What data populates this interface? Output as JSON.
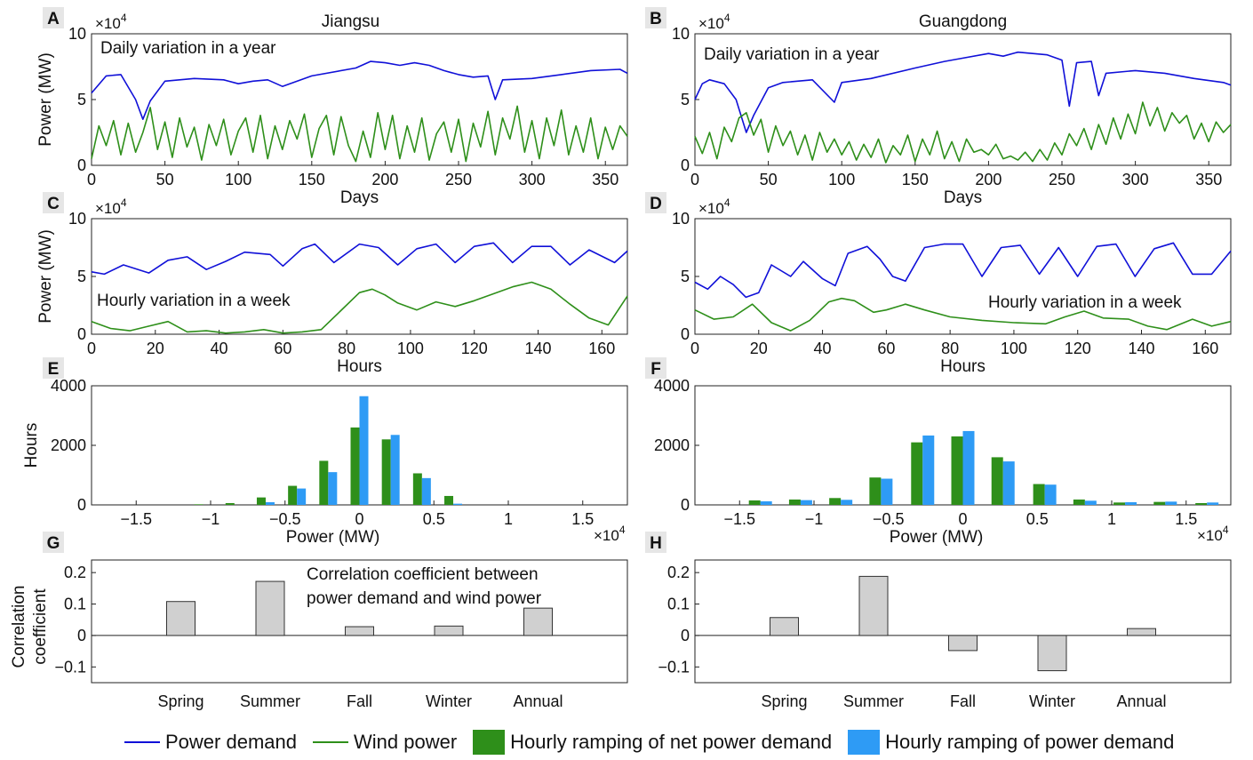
{
  "colors": {
    "demand": "#1010d8",
    "wind": "#2e8f1a",
    "net_ramp": "#2e8f1a",
    "ramp": "#2e9bf5",
    "corr": "#d0d0d0"
  },
  "legend": {
    "demand": "Power demand",
    "wind": "Wind power",
    "net_ramp": "Hourly ramping of net power demand",
    "ramp": "Hourly ramping of power demand"
  },
  "chart_data": [
    {
      "panel": "A",
      "type": "line",
      "title": "Jiangsu",
      "annotation": "Daily variation in a year",
      "xlabel": "Days",
      "ylabel": "Power (MW)",
      "y_multiplier": "×10^4",
      "xlim": [
        0,
        365
      ],
      "ylim": [
        0,
        10
      ],
      "xticks": [
        0,
        50,
        100,
        150,
        200,
        250,
        300,
        350
      ],
      "yticks": [
        0,
        5,
        10
      ],
      "series": [
        {
          "name": "Power demand",
          "x": [
            0,
            10,
            20,
            30,
            35,
            40,
            50,
            70,
            90,
            100,
            110,
            120,
            130,
            150,
            180,
            190,
            200,
            210,
            220,
            230,
            240,
            250,
            260,
            270,
            275,
            280,
            300,
            320,
            340,
            360,
            365
          ],
          "y": [
            5.5,
            6.8,
            6.9,
            5.0,
            3.5,
            4.9,
            6.4,
            6.6,
            6.5,
            6.2,
            6.4,
            6.5,
            6.0,
            6.8,
            7.4,
            7.9,
            7.8,
            7.6,
            7.8,
            7.6,
            7.2,
            6.9,
            6.7,
            6.8,
            5.0,
            6.5,
            6.6,
            6.9,
            7.2,
            7.3,
            7.0
          ]
        },
        {
          "name": "Wind power",
          "x": [
            0,
            5,
            10,
            15,
            20,
            25,
            30,
            35,
            40,
            45,
            50,
            55,
            60,
            65,
            70,
            75,
            80,
            85,
            90,
            95,
            100,
            105,
            110,
            115,
            120,
            125,
            130,
            135,
            140,
            145,
            150,
            155,
            160,
            165,
            170,
            175,
            180,
            185,
            190,
            195,
            200,
            205,
            210,
            215,
            220,
            225,
            230,
            235,
            240,
            245,
            250,
            255,
            260,
            265,
            270,
            275,
            280,
            285,
            290,
            295,
            300,
            305,
            310,
            315,
            320,
            325,
            330,
            335,
            340,
            345,
            350,
            355,
            360,
            365
          ],
          "y": [
            0.5,
            3.0,
            1.5,
            3.4,
            0.8,
            3.2,
            1.0,
            2.5,
            4.4,
            1.2,
            3.3,
            0.6,
            3.6,
            1.4,
            2.9,
            0.4,
            3.1,
            1.5,
            3.5,
            0.8,
            2.6,
            3.6,
            1.0,
            3.8,
            0.5,
            3.0,
            1.2,
            3.4,
            2.0,
            3.9,
            0.6,
            2.8,
            3.8,
            0.8,
            3.7,
            1.5,
            0.3,
            2.6,
            0.6,
            4.0,
            1.2,
            3.8,
            0.5,
            3.0,
            1.0,
            3.6,
            0.4,
            2.4,
            3.3,
            1.0,
            3.5,
            0.3,
            3.2,
            1.4,
            4.1,
            0.8,
            3.6,
            2.0,
            4.5,
            1.0,
            3.4,
            0.5,
            3.6,
            1.5,
            4.2,
            0.8,
            3.0,
            1.0,
            3.6,
            0.5,
            2.9,
            1.2,
            3.0,
            2.2
          ]
        }
      ]
    },
    {
      "panel": "B",
      "type": "line",
      "title": "Guangdong",
      "annotation": "Daily variation in a year",
      "xlabel": "Days",
      "ylabel": "",
      "y_multiplier": "×10^4",
      "xlim": [
        0,
        365
      ],
      "ylim": [
        0,
        10
      ],
      "xticks": [
        0,
        50,
        100,
        150,
        200,
        250,
        300,
        350
      ],
      "yticks": [
        0,
        5,
        10
      ],
      "series": [
        {
          "name": "Power demand",
          "x": [
            0,
            5,
            10,
            20,
            28,
            35,
            40,
            50,
            60,
            80,
            95,
            100,
            120,
            150,
            170,
            180,
            200,
            210,
            220,
            240,
            250,
            255,
            260,
            270,
            275,
            280,
            300,
            320,
            340,
            360,
            365
          ],
          "y": [
            5.0,
            6.2,
            6.5,
            6.2,
            5.0,
            2.5,
            3.8,
            5.9,
            6.3,
            6.5,
            4.8,
            6.3,
            6.6,
            7.4,
            7.9,
            8.1,
            8.5,
            8.3,
            8.6,
            8.4,
            8.0,
            4.5,
            7.8,
            7.9,
            5.3,
            7.0,
            7.2,
            7.0,
            6.6,
            6.3,
            6.1
          ]
        },
        {
          "name": "Wind power",
          "x": [
            0,
            5,
            10,
            15,
            20,
            25,
            30,
            35,
            40,
            45,
            50,
            55,
            60,
            65,
            70,
            75,
            80,
            85,
            90,
            95,
            100,
            105,
            110,
            115,
            120,
            125,
            130,
            135,
            140,
            145,
            150,
            155,
            160,
            165,
            170,
            175,
            180,
            185,
            190,
            195,
            200,
            205,
            210,
            215,
            220,
            225,
            230,
            235,
            240,
            245,
            250,
            255,
            260,
            265,
            270,
            275,
            280,
            285,
            290,
            295,
            300,
            305,
            310,
            315,
            320,
            325,
            330,
            335,
            340,
            345,
            350,
            355,
            360,
            365
          ],
          "y": [
            2.2,
            0.9,
            2.5,
            0.5,
            2.9,
            1.8,
            3.6,
            4.0,
            2.3,
            3.5,
            1.0,
            3.0,
            1.5,
            2.6,
            0.8,
            2.3,
            0.4,
            2.5,
            1.0,
            2.0,
            0.8,
            1.8,
            0.4,
            1.6,
            0.6,
            2.0,
            0.2,
            1.5,
            0.8,
            2.3,
            0.3,
            2.0,
            0.8,
            2.6,
            0.5,
            1.8,
            0.3,
            2.0,
            1.0,
            1.2,
            0.8,
            1.6,
            0.5,
            0.7,
            0.4,
            1.0,
            0.3,
            1.2,
            0.4,
            1.7,
            0.8,
            2.4,
            1.5,
            2.8,
            1.2,
            3.1,
            1.6,
            3.6,
            2.0,
            3.9,
            2.4,
            4.8,
            3.0,
            4.4,
            2.6,
            4.0,
            3.2,
            3.8,
            2.0,
            3.2,
            1.8,
            3.3,
            2.5,
            3.1
          ]
        }
      ]
    },
    {
      "panel": "C",
      "type": "line",
      "annotation": "Hourly variation in a week",
      "xlabel": "Hours",
      "ylabel": "Power (MW)",
      "y_multiplier": "×10^4",
      "xlim": [
        0,
        168
      ],
      "ylim": [
        0,
        10
      ],
      "xticks": [
        0,
        20,
        40,
        60,
        80,
        100,
        120,
        140,
        160
      ],
      "yticks": [
        0,
        5,
        10
      ],
      "series": [
        {
          "name": "Power demand",
          "x": [
            0,
            4,
            10,
            18,
            24,
            30,
            36,
            42,
            48,
            56,
            60,
            66,
            70,
            76,
            84,
            90,
            96,
            102,
            108,
            114,
            120,
            126,
            132,
            138,
            144,
            150,
            156,
            164,
            168
          ],
          "y": [
            5.4,
            5.2,
            6.0,
            5.3,
            6.4,
            6.7,
            5.6,
            6.3,
            7.1,
            6.9,
            5.9,
            7.4,
            7.8,
            6.2,
            7.8,
            7.5,
            6.0,
            7.4,
            7.8,
            6.2,
            7.6,
            7.9,
            6.2,
            7.6,
            7.6,
            6.0,
            7.3,
            6.2,
            7.2
          ]
        },
        {
          "name": "Wind power",
          "x": [
            0,
            6,
            12,
            18,
            24,
            30,
            36,
            42,
            48,
            54,
            60,
            66,
            72,
            78,
            84,
            88,
            92,
            96,
            102,
            108,
            114,
            120,
            126,
            132,
            138,
            144,
            150,
            156,
            162,
            168
          ],
          "y": [
            1.1,
            0.5,
            0.3,
            0.7,
            1.1,
            0.2,
            0.3,
            0.1,
            0.2,
            0.4,
            0.1,
            0.2,
            0.4,
            2.0,
            3.6,
            3.9,
            3.4,
            2.7,
            2.1,
            2.8,
            2.4,
            2.9,
            3.5,
            4.1,
            4.5,
            3.9,
            2.6,
            1.4,
            0.8,
            3.3
          ]
        }
      ]
    },
    {
      "panel": "D",
      "type": "line",
      "annotation": "Hourly variation in a week",
      "xlabel": "Hours",
      "ylabel": "",
      "y_multiplier": "×10^4",
      "xlim": [
        0,
        168
      ],
      "ylim": [
        0,
        10
      ],
      "xticks": [
        0,
        20,
        40,
        60,
        80,
        100,
        120,
        140,
        160
      ],
      "yticks": [
        0,
        5,
        10
      ],
      "series": [
        {
          "name": "Power demand",
          "x": [
            0,
            4,
            8,
            12,
            16,
            20,
            24,
            30,
            34,
            40,
            44,
            48,
            54,
            58,
            62,
            66,
            72,
            78,
            84,
            90,
            96,
            102,
            108,
            114,
            120,
            126,
            132,
            138,
            144,
            150,
            156,
            162,
            168
          ],
          "y": [
            4.5,
            3.9,
            5.0,
            4.3,
            3.2,
            3.6,
            6.0,
            5.0,
            6.3,
            4.8,
            4.2,
            7.0,
            7.6,
            6.5,
            5.0,
            4.6,
            7.5,
            7.8,
            7.8,
            5.0,
            7.5,
            7.7,
            5.2,
            7.5,
            5.0,
            7.6,
            7.8,
            5.0,
            7.4,
            7.9,
            5.2,
            5.2,
            7.2
          ]
        },
        {
          "name": "Wind power",
          "x": [
            0,
            6,
            12,
            18,
            24,
            30,
            36,
            42,
            46,
            50,
            56,
            60,
            66,
            72,
            80,
            90,
            100,
            110,
            116,
            122,
            128,
            136,
            142,
            148,
            156,
            162,
            168
          ],
          "y": [
            2.1,
            1.3,
            1.5,
            2.6,
            1.0,
            0.3,
            1.2,
            2.8,
            3.1,
            2.9,
            1.9,
            2.1,
            2.6,
            2.1,
            1.5,
            1.2,
            1.0,
            0.9,
            1.5,
            2.0,
            1.4,
            1.3,
            0.7,
            0.4,
            1.3,
            0.7,
            1.1
          ]
        }
      ]
    },
    {
      "panel": "E",
      "type": "bar",
      "xlabel": "Power (MW)",
      "ylabel": "Hours",
      "x_multiplier": "×10^4",
      "xlim": [
        -1.8,
        1.8
      ],
      "ylim": [
        0,
        4000
      ],
      "xticks": [
        -1.5,
        -1,
        -0.5,
        0,
        0.5,
        1,
        1.5
      ],
      "yticks": [
        0,
        2000,
        4000
      ],
      "categories": [
        -1.05,
        -0.84,
        -0.63,
        -0.42,
        -0.21,
        0,
        0.21,
        0.42,
        0.63
      ],
      "series": [
        {
          "name": "Hourly ramping of net power demand",
          "values": [
            20,
            60,
            250,
            640,
            1480,
            2600,
            2200,
            1060,
            300
          ]
        },
        {
          "name": "Hourly ramping of power demand",
          "values": [
            0,
            0,
            90,
            550,
            1100,
            3650,
            2350,
            900,
            40
          ]
        }
      ]
    },
    {
      "panel": "F",
      "type": "bar",
      "xlabel": "Power (MW)",
      "ylabel": "",
      "x_multiplier": "×10^4",
      "xlim": [
        -1.8,
        1.8
      ],
      "ylim": [
        0,
        4000
      ],
      "xticks": [
        -1.5,
        -1,
        -0.5,
        0,
        0.5,
        1,
        1.5
      ],
      "yticks": [
        0,
        2000,
        4000
      ],
      "categories": [
        -1.36,
        -1.09,
        -0.82,
        -0.55,
        -0.27,
        0,
        0.27,
        0.55,
        0.82,
        1.09,
        1.36,
        1.64
      ],
      "series": [
        {
          "name": "Hourly ramping of net power demand",
          "values": [
            150,
            180,
            230,
            920,
            2100,
            2300,
            1600,
            700,
            180,
            80,
            100,
            60
          ]
        },
        {
          "name": "Hourly ramping of power demand",
          "values": [
            120,
            160,
            170,
            880,
            2330,
            2480,
            1460,
            680,
            140,
            90,
            110,
            80
          ]
        }
      ]
    },
    {
      "panel": "G",
      "type": "bar",
      "annotation": [
        "Correlation coefficient between",
        "power demand and wind power"
      ],
      "ylabel": "Correlation coefficient",
      "ylim": [
        -0.15,
        0.24
      ],
      "yticks": [
        -0.1,
        0,
        0.1,
        0.2
      ],
      "categories": [
        "Spring",
        "Summer",
        "Fall",
        "Winter",
        "Annual"
      ],
      "values": [
        0.108,
        0.172,
        0.028,
        0.03,
        0.087
      ]
    },
    {
      "panel": "H",
      "type": "bar",
      "ylabel": "",
      "ylim": [
        -0.15,
        0.24
      ],
      "yticks": [
        -0.1,
        0,
        0.1,
        0.2
      ],
      "categories": [
        "Spring",
        "Summer",
        "Fall",
        "Winter",
        "Annual"
      ],
      "values": [
        0.057,
        0.188,
        -0.048,
        -0.112,
        0.022
      ]
    }
  ]
}
